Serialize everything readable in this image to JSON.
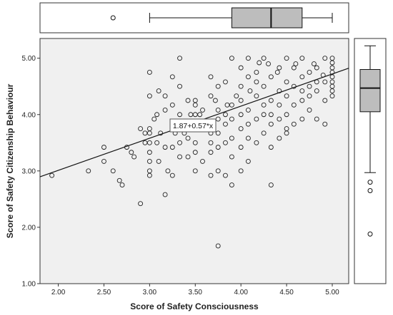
{
  "chart_data": {
    "type": "scatter",
    "xlabel": "Score of Safety Consciousness",
    "ylabel": "Score of Safety Citizenship Behaviour",
    "xlim": [
      1.8,
      5.18
    ],
    "ylim": [
      1.0,
      5.35
    ],
    "x_ticks": [
      "2.00",
      "2.50",
      "3.00",
      "3.50",
      "4.00",
      "4.50",
      "5.00"
    ],
    "y_ticks": [
      "1.00",
      "2.00",
      "3.00",
      "4.00",
      "5.00"
    ],
    "fit_line": {
      "label": "1.87+0.57*x",
      "intercept": 1.87,
      "slope": 0.57
    },
    "marginal_box_x": {
      "whisker_low": 3.0,
      "q1": 3.9,
      "median": 4.33,
      "q3": 4.67,
      "whisker_high": 5.0,
      "outliers": [
        2.6
      ]
    },
    "marginal_box_y": {
      "whisker_low": 2.97,
      "q1": 4.05,
      "median": 4.47,
      "q3": 4.8,
      "whisker_high": 5.22,
      "outliers": [
        2.8,
        2.65,
        1.88
      ]
    },
    "points": [
      [
        1.93,
        2.92
      ],
      [
        2.33,
        3.0
      ],
      [
        2.5,
        3.17
      ],
      [
        2.5,
        3.42
      ],
      [
        2.6,
        3.0
      ],
      [
        2.67,
        2.83
      ],
      [
        2.7,
        2.75
      ],
      [
        2.75,
        3.42
      ],
      [
        2.8,
        3.33
      ],
      [
        2.83,
        3.25
      ],
      [
        2.9,
        2.42
      ],
      [
        2.9,
        3.75
      ],
      [
        2.95,
        3.67
      ],
      [
        3.0,
        2.92
      ],
      [
        3.0,
        3.0
      ],
      [
        3.0,
        3.17
      ],
      [
        3.0,
        3.33
      ],
      [
        3.0,
        3.5
      ],
      [
        3.0,
        3.67
      ],
      [
        3.0,
        3.75
      ],
      [
        3.0,
        4.33
      ],
      [
        3.0,
        4.75
      ],
      [
        3.08,
        3.5
      ],
      [
        3.08,
        4.0
      ],
      [
        3.1,
        3.17
      ],
      [
        3.1,
        4.42
      ],
      [
        3.17,
        2.58
      ],
      [
        3.17,
        3.42
      ],
      [
        3.17,
        4.33
      ],
      [
        3.17,
        4.08
      ],
      [
        3.2,
        3.0
      ],
      [
        3.25,
        3.42
      ],
      [
        3.25,
        4.17
      ],
      [
        3.25,
        4.67
      ],
      [
        3.25,
        2.92
      ],
      [
        3.3,
        3.83
      ],
      [
        3.33,
        3.5
      ],
      [
        3.33,
        4.0
      ],
      [
        3.33,
        4.5
      ],
      [
        3.33,
        5.0
      ],
      [
        3.33,
        3.25
      ],
      [
        3.42,
        3.25
      ],
      [
        3.42,
        3.75
      ],
      [
        3.42,
        4.25
      ],
      [
        3.42,
        3.58
      ],
      [
        3.5,
        3.0
      ],
      [
        3.5,
        3.5
      ],
      [
        3.5,
        4.0
      ],
      [
        3.5,
        4.25
      ],
      [
        3.5,
        3.33
      ],
      [
        3.5,
        4.17
      ],
      [
        3.58,
        3.17
      ],
      [
        3.58,
        3.83
      ],
      [
        3.58,
        4.08
      ],
      [
        3.67,
        3.33
      ],
      [
        3.67,
        3.67
      ],
      [
        3.67,
        4.33
      ],
      [
        3.67,
        4.67
      ],
      [
        3.67,
        2.92
      ],
      [
        3.67,
        3.5
      ],
      [
        3.75,
        1.67
      ],
      [
        3.75,
        3.0
      ],
      [
        3.75,
        3.42
      ],
      [
        3.75,
        3.92
      ],
      [
        3.75,
        4.08
      ],
      [
        3.75,
        4.5
      ],
      [
        3.75,
        3.67
      ],
      [
        3.83,
        2.92
      ],
      [
        3.83,
        3.5
      ],
      [
        3.83,
        4.0
      ],
      [
        3.83,
        4.58
      ],
      [
        3.83,
        3.83
      ],
      [
        3.9,
        2.75
      ],
      [
        3.9,
        3.25
      ],
      [
        3.9,
        3.58
      ],
      [
        3.9,
        4.17
      ],
      [
        3.9,
        5.0
      ],
      [
        3.9,
        3.92
      ],
      [
        4.0,
        3.0
      ],
      [
        4.0,
        3.42
      ],
      [
        4.0,
        3.75
      ],
      [
        4.0,
        4.25
      ],
      [
        4.0,
        4.5
      ],
      [
        4.0,
        4.83
      ],
      [
        4.0,
        4.0
      ],
      [
        4.08,
        3.17
      ],
      [
        4.08,
        3.58
      ],
      [
        4.08,
        4.08
      ],
      [
        4.08,
        4.67
      ],
      [
        4.08,
        5.0
      ],
      [
        4.08,
        3.83
      ],
      [
        4.17,
        3.5
      ],
      [
        4.17,
        3.92
      ],
      [
        4.17,
        4.33
      ],
      [
        4.17,
        4.75
      ],
      [
        4.17,
        4.58
      ],
      [
        4.25,
        3.67
      ],
      [
        4.25,
        4.0
      ],
      [
        4.25,
        4.5
      ],
      [
        4.25,
        5.0
      ],
      [
        4.25,
        4.17
      ],
      [
        4.33,
        2.75
      ],
      [
        4.33,
        3.42
      ],
      [
        4.33,
        3.83
      ],
      [
        4.33,
        4.25
      ],
      [
        4.33,
        4.67
      ],
      [
        4.33,
        4.0
      ],
      [
        4.42,
        3.58
      ],
      [
        4.42,
        4.17
      ],
      [
        4.42,
        4.42
      ],
      [
        4.42,
        4.83
      ],
      [
        4.42,
        3.92
      ],
      [
        4.5,
        3.75
      ],
      [
        4.5,
        4.0
      ],
      [
        4.5,
        4.33
      ],
      [
        4.5,
        4.58
      ],
      [
        4.5,
        5.0
      ],
      [
        4.5,
        3.67
      ],
      [
        4.58,
        3.83
      ],
      [
        4.58,
        4.17
      ],
      [
        4.58,
        4.5
      ],
      [
        4.58,
        4.83
      ],
      [
        4.67,
        3.92
      ],
      [
        4.67,
        4.25
      ],
      [
        4.67,
        4.67
      ],
      [
        4.67,
        5.0
      ],
      [
        4.67,
        4.42
      ],
      [
        4.75,
        4.08
      ],
      [
        4.75,
        4.33
      ],
      [
        4.75,
        4.75
      ],
      [
        4.75,
        4.5
      ],
      [
        4.83,
        3.92
      ],
      [
        4.83,
        4.42
      ],
      [
        4.83,
        4.83
      ],
      [
        4.83,
        4.58
      ],
      [
        4.92,
        3.83
      ],
      [
        4.92,
        4.58
      ],
      [
        4.92,
        5.0
      ],
      [
        4.92,
        4.25
      ],
      [
        5.0,
        4.33
      ],
      [
        5.0,
        4.5
      ],
      [
        5.0,
        4.67
      ],
      [
        5.0,
        4.83
      ],
      [
        5.0,
        5.0
      ],
      [
        5.0,
        4.42
      ],
      [
        5.0,
        4.58
      ],
      [
        5.0,
        4.75
      ],
      [
        5.0,
        4.92
      ],
      [
        4.9,
        4.7
      ],
      [
        4.8,
        4.9
      ],
      [
        4.6,
        4.9
      ],
      [
        4.4,
        4.75
      ],
      [
        4.3,
        4.9
      ],
      [
        4.2,
        4.92
      ],
      [
        4.1,
        4.42
      ],
      [
        3.95,
        4.33
      ],
      [
        3.85,
        4.17
      ],
      [
        3.72,
        4.25
      ],
      [
        3.62,
        3.83
      ],
      [
        3.55,
        4.0
      ],
      [
        3.45,
        4.0
      ],
      [
        3.38,
        3.67
      ],
      [
        3.28,
        3.67
      ],
      [
        3.12,
        3.67
      ],
      [
        3.05,
        3.92
      ],
      [
        2.95,
        3.5
      ]
    ]
  }
}
